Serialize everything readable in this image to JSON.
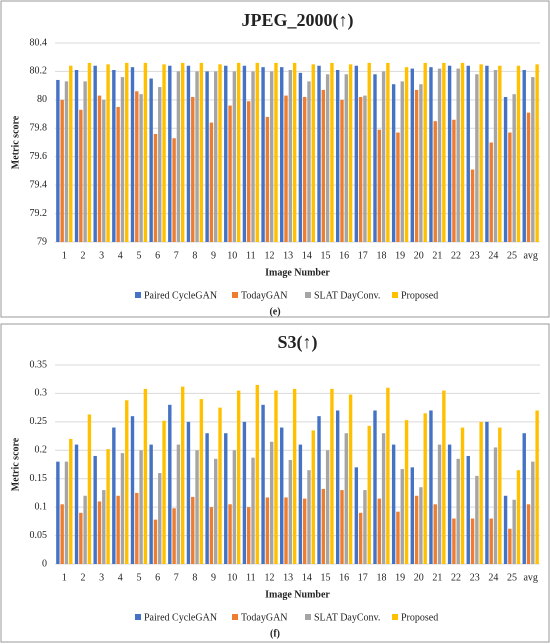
{
  "chart_data": [
    {
      "type": "bar",
      "title": "JPEG_2000(↑)",
      "caption": "(e)",
      "x_label": "Image Number",
      "y_label": "Metric score",
      "categories": [
        "1",
        "2",
        "3",
        "4",
        "5",
        "6",
        "7",
        "8",
        "9",
        "10",
        "11",
        "12",
        "13",
        "14",
        "15",
        "16",
        "17",
        "18",
        "19",
        "20",
        "21",
        "22",
        "23",
        "24",
        "25",
        "avg"
      ],
      "ylim": [
        79,
        80.4
      ],
      "yticks": [
        79,
        79.2,
        79.4,
        79.6,
        79.8,
        80,
        80.2,
        80.4
      ],
      "grid": true,
      "series": [
        {
          "name": "Paired CycleGAN",
          "color": "#4472c4",
          "values": [
            80.14,
            80.21,
            80.24,
            80.21,
            80.23,
            80.15,
            80.24,
            80.24,
            80.2,
            80.24,
            80.24,
            80.23,
            80.23,
            80.19,
            80.24,
            80.21,
            80.24,
            80.18,
            80.11,
            80.22,
            80.23,
            80.24,
            80.24,
            80.24,
            80.02,
            80.21
          ]
        },
        {
          "name": "TodayGAN",
          "color": "#ed7d31",
          "values": [
            80.0,
            79.93,
            80.03,
            79.95,
            80.06,
            79.76,
            79.73,
            80.02,
            79.84,
            79.96,
            79.99,
            79.88,
            80.03,
            80.02,
            80.07,
            80.0,
            80.02,
            79.79,
            79.77,
            80.07,
            79.85,
            79.86,
            79.51,
            79.7,
            79.77,
            79.91
          ]
        },
        {
          "name": "SLAT DayConv.",
          "color": "#a5a5a5",
          "values": [
            80.13,
            80.13,
            80.0,
            80.16,
            80.04,
            80.09,
            80.2,
            80.2,
            80.2,
            80.2,
            80.2,
            80.2,
            80.21,
            80.13,
            80.18,
            80.18,
            80.03,
            80.2,
            80.13,
            80.11,
            80.22,
            80.22,
            80.18,
            80.21,
            80.04,
            80.16
          ]
        },
        {
          "name": "Proposed",
          "color": "#ffc000",
          "values": [
            80.24,
            80.26,
            80.25,
            80.26,
            80.26,
            80.25,
            80.26,
            80.26,
            80.25,
            80.26,
            80.26,
            80.26,
            80.26,
            80.25,
            80.26,
            80.25,
            80.26,
            80.26,
            80.23,
            80.26,
            80.26,
            80.26,
            80.25,
            80.24,
            80.24,
            80.25
          ]
        }
      ]
    },
    {
      "type": "bar",
      "title": "S3(↑)",
      "caption": "(f)",
      "x_label": "Image Number",
      "y_label": "Metric score",
      "categories": [
        "1",
        "2",
        "3",
        "4",
        "5",
        "6",
        "7",
        "8",
        "9",
        "10",
        "11",
        "12",
        "13",
        "14",
        "15",
        "16",
        "17",
        "18",
        "19",
        "20",
        "21",
        "22",
        "23",
        "24",
        "25",
        "avg"
      ],
      "ylim": [
        0,
        0.35
      ],
      "yticks": [
        0,
        0.05,
        0.1,
        0.15,
        0.2,
        0.25,
        0.3,
        0.35
      ],
      "grid": true,
      "series": [
        {
          "name": "Paired CycleGAN",
          "color": "#4472c4",
          "values": [
            0.18,
            0.21,
            0.19,
            0.24,
            0.26,
            0.21,
            0.28,
            0.25,
            0.23,
            0.23,
            0.25,
            0.28,
            0.24,
            0.21,
            0.26,
            0.27,
            0.17,
            0.27,
            0.21,
            0.17,
            0.27,
            0.21,
            0.19,
            0.25,
            0.12,
            0.23
          ]
        },
        {
          "name": "TodayGAN",
          "color": "#ed7d31",
          "values": [
            0.105,
            0.09,
            0.11,
            0.12,
            0.125,
            0.078,
            0.098,
            0.118,
            0.1,
            0.105,
            0.1,
            0.117,
            0.117,
            0.115,
            0.132,
            0.13,
            0.09,
            0.115,
            0.092,
            0.12,
            0.105,
            0.08,
            0.08,
            0.08,
            0.062,
            0.105
          ]
        },
        {
          "name": "SLAT DayConv.",
          "color": "#a5a5a5",
          "values": [
            0.18,
            0.12,
            0.13,
            0.195,
            0.2,
            0.16,
            0.21,
            0.2,
            0.185,
            0.2,
            0.187,
            0.215,
            0.183,
            0.165,
            0.2,
            0.23,
            0.13,
            0.23,
            0.167,
            0.135,
            0.21,
            0.185,
            0.155,
            0.205,
            0.113,
            0.18
          ]
        },
        {
          "name": "Proposed",
          "color": "#ffc000",
          "values": [
            0.22,
            0.263,
            0.202,
            0.288,
            0.308,
            0.252,
            0.312,
            0.29,
            0.275,
            0.305,
            0.315,
            0.305,
            0.308,
            0.235,
            0.308,
            0.298,
            0.243,
            0.31,
            0.253,
            0.265,
            0.305,
            0.24,
            0.25,
            0.24,
            0.165,
            0.27
          ]
        }
      ]
    }
  ]
}
